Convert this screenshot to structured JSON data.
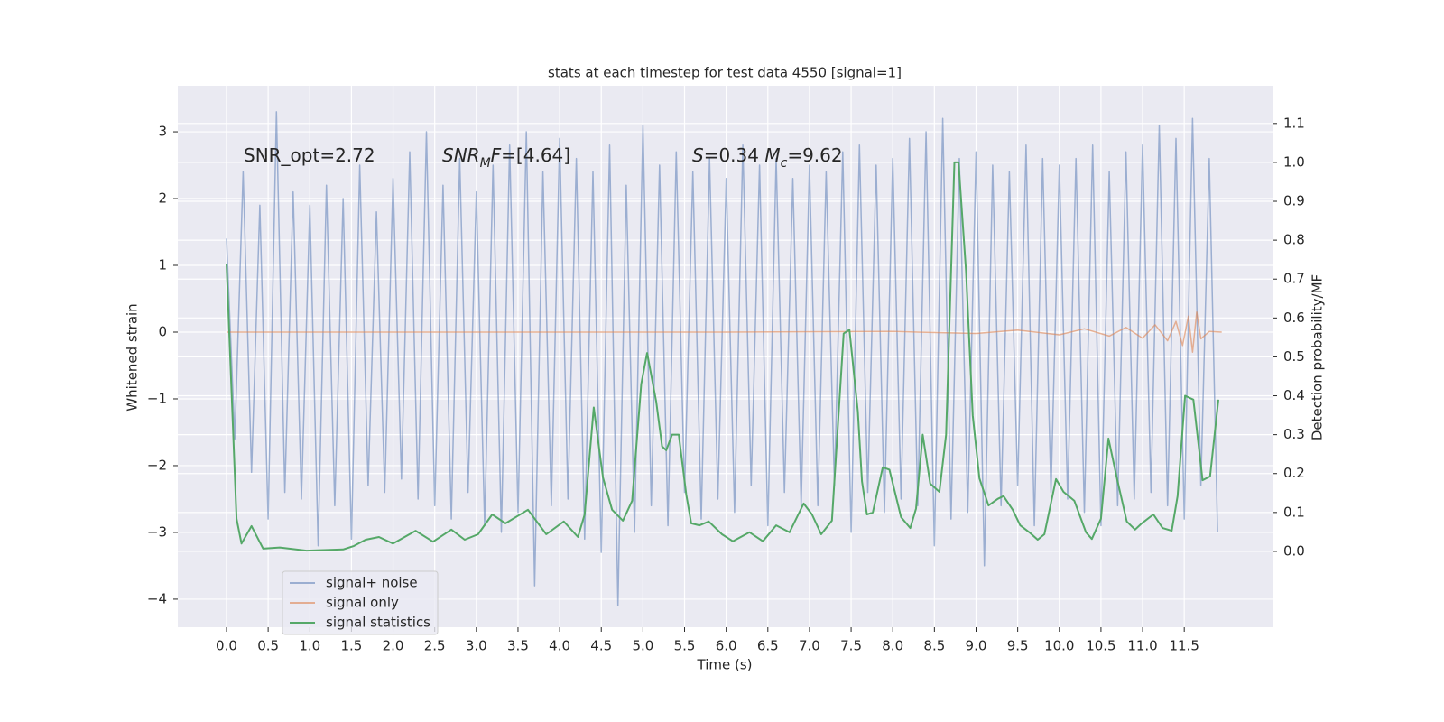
{
  "chart_data": {
    "type": "line",
    "title": "stats at each timestep for test data 4550 [signal=1]",
    "xlabel": "Time (s)",
    "ylabel": "Whitened strain",
    "y2label": "Detection probability/MF",
    "background": "#eaeaf2",
    "grid": true,
    "legend": "lower left",
    "annotations": [
      {
        "parts": [
          {
            "text": "SNR_opt=2.72"
          }
        ]
      },
      {
        "parts": [
          {
            "text": "SNR",
            "italic": true
          },
          {
            "text": "M",
            "italic": true,
            "sub": true
          },
          {
            "text": "F",
            "italic": true
          },
          {
            "text": "=[4.64]"
          }
        ]
      },
      {
        "parts": [
          {
            "text": "S",
            "italic": true
          },
          {
            "text": "=0.34  "
          },
          {
            "text": "M",
            "italic": true
          },
          {
            "text": "c",
            "italic": true,
            "sub": true
          },
          {
            "text": "=9.62"
          }
        ]
      }
    ],
    "xlim": [
      -0.585,
      12.56
    ],
    "ylim": [
      -4.42,
      3.69
    ],
    "y2lim": [
      -0.195,
      1.197
    ],
    "xticks": [
      {
        "value": 0,
        "label": "0.0"
      },
      0.5,
      {
        "value": 1,
        "label": "1.0"
      },
      1.5,
      {
        "value": 2,
        "label": "2.0"
      },
      2.5,
      {
        "value": 3,
        "label": "3.0"
      },
      3.5,
      {
        "value": 4,
        "label": "4.0"
      },
      4.5,
      {
        "value": 5,
        "label": "5.0"
      },
      5.5,
      {
        "value": 6,
        "label": "6.0"
      },
      6.5,
      {
        "value": 7,
        "label": "7.0"
      },
      7.5,
      {
        "value": 8,
        "label": "8.0"
      },
      8.5,
      {
        "value": 9,
        "label": "9.0"
      },
      9.5,
      {
        "value": 10,
        "label": "10.0"
      },
      10.5,
      {
        "value": 11,
        "label": "11.0"
      },
      11.5
    ],
    "yticks": [
      {
        "value": -4,
        "label": "−4"
      },
      {
        "value": -3,
        "label": "−3"
      },
      {
        "value": -2,
        "label": "−2"
      },
      {
        "value": -1,
        "label": "−1"
      },
      0,
      1,
      2,
      3
    ],
    "y2ticks": [
      {
        "value": 0,
        "label": "0.0"
      },
      0.1,
      0.2,
      0.3,
      0.4,
      0.5,
      0.6,
      0.7,
      0.8,
      0.9,
      {
        "value": 1,
        "label": "1.0"
      },
      1.1
    ],
    "series": [
      {
        "name": "signal+ noise",
        "color": "#4c72b0",
        "alpha": 0.5,
        "x": [
          0.0,
          0.1,
          0.2,
          0.3,
          0.4,
          0.5,
          0.6,
          0.7,
          0.8,
          0.9,
          1.0,
          1.1,
          1.2,
          1.3,
          1.4,
          1.5,
          1.6,
          1.7,
          1.8,
          1.9,
          2.0,
          2.1,
          2.2,
          2.3,
          2.4,
          2.5,
          2.6,
          2.7,
          2.8,
          2.9,
          3.0,
          3.1,
          3.2,
          3.3,
          3.4,
          3.5,
          3.6,
          3.7,
          3.8,
          3.9,
          4.0,
          4.1,
          4.2,
          4.3,
          4.4,
          4.5,
          4.6,
          4.7,
          4.8,
          4.9,
          5.0,
          5.1,
          5.2,
          5.3,
          5.4,
          5.5,
          5.6,
          5.7,
          5.8,
          5.9,
          6.0,
          6.1,
          6.2,
          6.3,
          6.4,
          6.5,
          6.6,
          6.7,
          6.8,
          6.9,
          7.0,
          7.1,
          7.2,
          7.3,
          7.4,
          7.5,
          7.6,
          7.7,
          7.8,
          7.9,
          8.0,
          8.1,
          8.2,
          8.3,
          8.4,
          8.5,
          8.6,
          8.7,
          8.8,
          8.9,
          9.0,
          9.1,
          9.2,
          9.3,
          9.4,
          9.5,
          9.6,
          9.7,
          9.8,
          9.9,
          10.0,
          10.1,
          10.2,
          10.3,
          10.4,
          10.5,
          10.6,
          10.7,
          10.8,
          10.9,
          11.0,
          11.1,
          11.2,
          11.3,
          11.4,
          11.5,
          11.6,
          11.7,
          11.8,
          11.9
        ],
        "values": [
          1.4,
          -1.6,
          2.4,
          -2.1,
          1.9,
          -2.8,
          3.3,
          -2.4,
          2.1,
          -2.5,
          1.9,
          -3.2,
          2.2,
          -2.6,
          2.0,
          -3.1,
          2.5,
          -2.3,
          1.8,
          -2.4,
          2.3,
          -2.2,
          2.7,
          -2.5,
          3.0,
          -2.6,
          2.2,
          -2.8,
          2.6,
          -2.4,
          2.1,
          -2.9,
          2.5,
          -3.0,
          2.8,
          -2.7,
          3.0,
          -3.8,
          2.4,
          -2.6,
          2.9,
          -2.5,
          2.6,
          -3.1,
          2.4,
          -3.3,
          2.8,
          -4.1,
          2.2,
          -3.0,
          3.1,
          -2.6,
          2.5,
          -2.9,
          2.7,
          -2.4,
          2.4,
          -2.8,
          2.6,
          -2.5,
          2.3,
          -2.7,
          2.8,
          -2.3,
          2.5,
          -2.9,
          2.6,
          -2.4,
          2.3,
          -2.6,
          2.5,
          -2.6,
          2.4,
          -2.3,
          2.7,
          -3.0,
          2.8,
          -2.4,
          2.5,
          -2.7,
          2.6,
          -2.5,
          2.9,
          -2.6,
          3.0,
          -3.2,
          3.2,
          -2.8,
          2.6,
          -2.7,
          2.7,
          -3.5,
          2.5,
          -2.6,
          2.4,
          -2.3,
          2.8,
          -2.9,
          2.6,
          -2.4,
          2.5,
          -2.5,
          2.6,
          -2.7,
          2.8,
          -2.9,
          2.4,
          -2.6,
          2.7,
          -2.5,
          2.8,
          -2.4,
          3.1,
          -2.6,
          2.9,
          -2.8,
          3.2,
          -2.3,
          2.6,
          -3.0
        ]
      },
      {
        "name": "signal only",
        "color": "#dd8452",
        "alpha": 0.6,
        "x": [
          0.0,
          2.0,
          4.0,
          6.0,
          8.0,
          9.0,
          9.5,
          10.0,
          10.3,
          10.6,
          10.8,
          11.0,
          11.15,
          11.3,
          11.4,
          11.48,
          11.55,
          11.6,
          11.65,
          11.7,
          11.8,
          11.95
        ],
        "values": [
          0,
          0,
          0,
          0,
          0.01,
          -0.02,
          0.03,
          -0.04,
          0.05,
          -0.06,
          0.07,
          -0.09,
          0.11,
          -0.13,
          0.16,
          -0.2,
          0.24,
          -0.3,
          0.3,
          -0.1,
          0.01,
          0
        ]
      },
      {
        "name": "signal statistics",
        "color": "#55a868",
        "alpha": 1,
        "axis": "y2",
        "x": [
          0,
          0.12,
          0.18,
          0.3,
          0.44,
          0.64,
          0.96,
          1.4,
          1.53,
          1.67,
          1.83,
          2.0,
          2.27,
          2.48,
          2.7,
          2.86,
          3.02,
          3.19,
          3.35,
          3.62,
          3.84,
          4.05,
          4.22,
          4.3,
          4.41,
          4.52,
          4.63,
          4.76,
          4.87,
          4.98,
          5.05,
          5.16,
          5.23,
          5.28,
          5.35,
          5.43,
          5.52,
          5.58,
          5.68,
          5.79,
          5.95,
          6.08,
          6.28,
          6.44,
          6.6,
          6.76,
          6.93,
          7.03,
          7.14,
          7.27,
          7.41,
          7.48,
          7.58,
          7.63,
          7.69,
          7.76,
          7.88,
          7.96,
          8.1,
          8.21,
          8.28,
          8.36,
          8.45,
          8.56,
          8.64,
          8.74,
          8.79,
          8.88,
          8.96,
          9.04,
          9.15,
          9.26,
          9.33,
          9.44,
          9.53,
          9.64,
          9.74,
          9.82,
          9.96,
          10.05,
          10.18,
          10.32,
          10.39,
          10.5,
          10.59,
          10.69,
          10.81,
          10.91,
          10.99,
          11.13,
          11.24,
          11.35,
          11.42,
          11.51,
          11.61,
          11.72,
          11.81,
          11.91
        ],
        "values": [
          0.74,
          0.084,
          0.02,
          0.065,
          0.007,
          0.01,
          0.002,
          0.005,
          0.014,
          0.03,
          0.037,
          0.02,
          0.053,
          0.025,
          0.056,
          0.03,
          0.044,
          0.095,
          0.072,
          0.107,
          0.044,
          0.077,
          0.037,
          0.095,
          0.37,
          0.19,
          0.107,
          0.079,
          0.13,
          0.43,
          0.51,
          0.385,
          0.27,
          0.26,
          0.3,
          0.3,
          0.146,
          0.072,
          0.067,
          0.077,
          0.044,
          0.026,
          0.049,
          0.026,
          0.067,
          0.049,
          0.123,
          0.095,
          0.044,
          0.079,
          0.56,
          0.57,
          0.36,
          0.18,
          0.095,
          0.1,
          0.216,
          0.21,
          0.088,
          0.06,
          0.11,
          0.3,
          0.174,
          0.153,
          0.3,
          1.0,
          1.0,
          0.72,
          0.35,
          0.188,
          0.118,
          0.135,
          0.142,
          0.107,
          0.067,
          0.049,
          0.03,
          0.044,
          0.186,
          0.153,
          0.13,
          0.049,
          0.032,
          0.084,
          0.29,
          0.19,
          0.077,
          0.056,
          0.072,
          0.095,
          0.06,
          0.053,
          0.142,
          0.4,
          0.39,
          0.183,
          0.193,
          0.39
        ]
      }
    ]
  }
}
